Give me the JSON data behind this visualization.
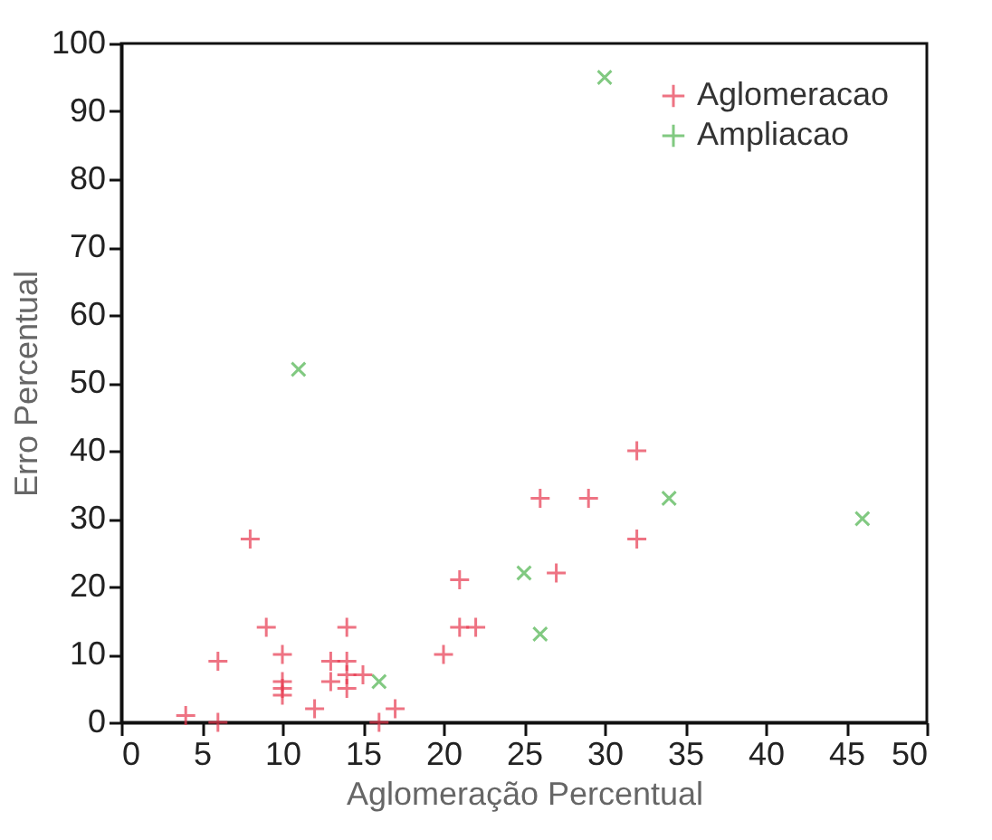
{
  "chart_data": {
    "type": "scatter",
    "xlabel": "Aglomeração Percentual",
    "ylabel": "Erro Percentual",
    "xlim": [
      0,
      50
    ],
    "xticks": [
      0,
      5,
      10,
      15,
      20,
      25,
      30,
      35,
      40,
      45,
      50
    ],
    "ylim": [
      0,
      100
    ],
    "yticks": [
      0,
      10,
      20,
      30,
      40,
      50,
      60,
      70,
      80,
      90,
      100
    ],
    "grid": false,
    "legend": "top right",
    "marker": "cross",
    "series": [
      {
        "name": "Aglomeracao",
        "color": "#e8394f",
        "x": [
          4,
          6,
          6,
          8,
          9,
          10,
          10,
          10,
          10,
          12,
          13,
          13,
          14,
          14,
          14,
          14,
          15,
          16,
          17,
          20,
          21,
          21,
          22,
          26,
          27,
          29,
          32,
          32
        ],
        "values": [
          1,
          9,
          0,
          27,
          14,
          10,
          6,
          5,
          4,
          2,
          9,
          6,
          14,
          9,
          7,
          5,
          7,
          0,
          2,
          10,
          21,
          14,
          14,
          33,
          22,
          33,
          40,
          27
        ]
      },
      {
        "name": "Ampliacao",
        "color": "#4db34d",
        "x": [
          11,
          16,
          25,
          26,
          30,
          34,
          46
        ],
        "values": [
          52,
          6,
          22,
          13,
          95,
          33,
          30
        ]
      }
    ]
  }
}
